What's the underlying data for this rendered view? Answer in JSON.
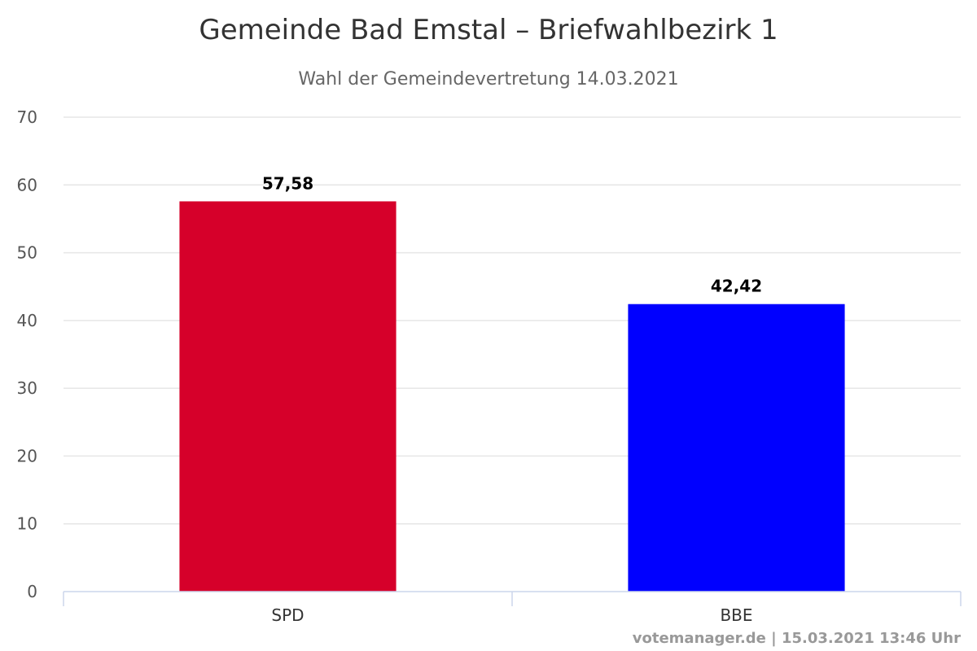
{
  "chart_data": {
    "type": "bar",
    "title": "Gemeinde Bad Emstal – Briefwahlbezirk 1",
    "subtitle": "Wahl der Gemeindevertretung 14.03.2021",
    "categories": [
      "SPD",
      "BBE"
    ],
    "values": [
      57.58,
      42.42
    ],
    "value_labels": [
      "57,58",
      "42,42"
    ],
    "colors": [
      "#d6002a",
      "#0000ff"
    ],
    "ylim": [
      0,
      70
    ],
    "yticks": [
      0,
      10,
      20,
      30,
      40,
      50,
      60,
      70
    ],
    "grid": true,
    "xlabel": "",
    "ylabel": ""
  },
  "credits": "votemanager.de | 15.03.2021 13:46 Uhr"
}
